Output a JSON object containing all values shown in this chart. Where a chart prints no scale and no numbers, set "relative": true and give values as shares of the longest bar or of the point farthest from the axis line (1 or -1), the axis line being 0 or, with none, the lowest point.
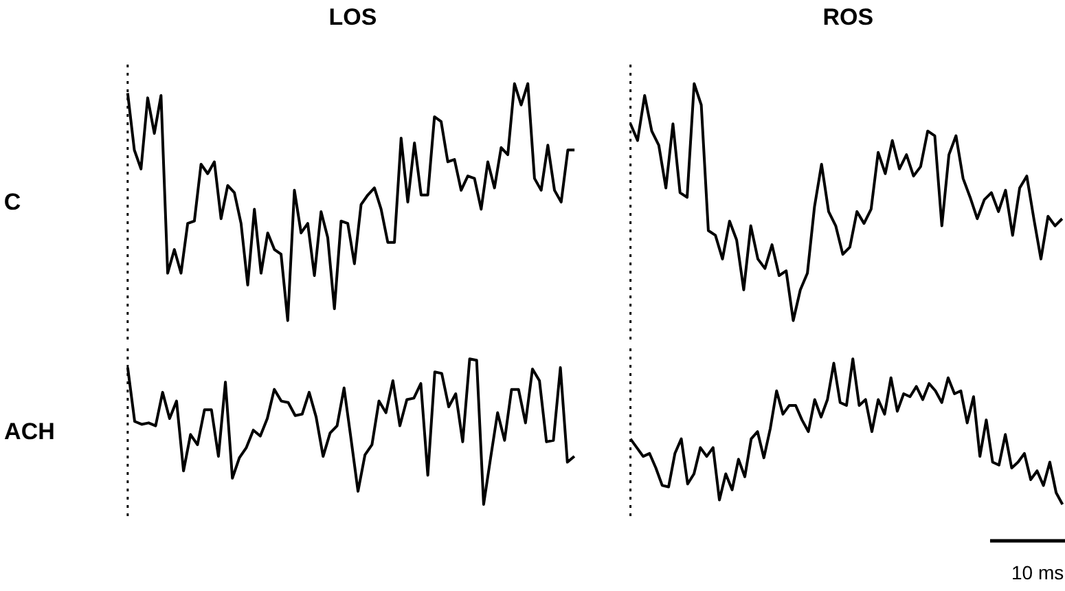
{
  "chart_data": [
    {
      "type": "line",
      "title": "LOS",
      "ylabel": "C",
      "relative": true,
      "tick_labels": false,
      "categories": [
        null,
        null,
        null,
        null,
        null,
        null,
        null,
        null,
        null,
        null,
        null,
        null,
        null,
        null,
        null,
        null,
        null,
        null,
        null,
        null,
        null,
        null,
        null,
        null,
        null,
        null,
        null,
        null,
        null,
        null,
        null,
        null,
        null,
        null,
        null,
        null,
        null,
        null,
        null,
        null,
        null,
        null,
        null,
        null,
        null,
        null,
        null,
        null,
        null,
        null,
        null,
        null,
        null,
        null,
        null,
        null,
        null,
        null,
        null,
        null,
        null,
        null,
        null,
        null,
        null,
        null,
        null,
        null
      ],
      "series": [
        {
          "color": "#000000",
          "values": [
            0.96,
            0.72,
            0.64,
            0.94,
            0.79,
            0.95,
            0.2,
            0.3,
            0.2,
            0.41,
            0.42,
            0.66,
            0.62,
            0.67,
            0.43,
            0.57,
            0.54,
            0.41,
            0.15,
            0.47,
            0.2,
            0.37,
            0.3,
            0.28,
            0,
            0.55,
            0.37,
            0.41,
            0.19,
            0.46,
            0.35,
            0.05,
            0.42,
            0.41,
            0.24,
            0.49,
            0.53,
            0.56,
            0.47,
            0.33,
            0.33,
            0.77,
            0.5,
            0.75,
            0.53,
            0.53,
            0.86,
            0.84,
            0.67,
            0.68,
            0.55,
            0.61,
            0.6,
            0.47,
            0.67,
            0.56,
            0.73,
            0.7,
            1,
            0.91,
            1,
            0.6,
            0.55,
            0.74,
            0.55,
            0.5,
            0.72,
            0.72
          ]
        }
      ]
    },
    {
      "type": "line",
      "title": "ROS",
      "relative": true,
      "tick_labels": false,
      "categories": [
        null,
        null,
        null,
        null,
        null,
        null,
        null,
        null,
        null,
        null,
        null,
        null,
        null,
        null,
        null,
        null,
        null,
        null,
        null,
        null,
        null,
        null,
        null,
        null,
        null,
        null,
        null,
        null,
        null,
        null,
        null,
        null,
        null,
        null,
        null,
        null,
        null,
        null,
        null,
        null,
        null,
        null,
        null,
        null,
        null,
        null,
        null,
        null,
        null,
        null,
        null,
        null,
        null,
        null,
        null,
        null,
        null,
        null,
        null,
        null,
        null,
        null
      ],
      "series": [
        {
          "color": "#000000",
          "values": [
            0.83,
            0.76,
            0.95,
            0.8,
            0.74,
            0.56,
            0.83,
            0.54,
            0.52,
            1,
            0.91,
            0.38,
            0.36,
            0.26,
            0.42,
            0.34,
            0.13,
            0.4,
            0.26,
            0.22,
            0.32,
            0.19,
            0.21,
            0,
            0.13,
            0.2,
            0.48,
            0.66,
            0.46,
            0.4,
            0.28,
            0.31,
            0.46,
            0.41,
            0.47,
            0.71,
            0.62,
            0.76,
            0.64,
            0.7,
            0.61,
            0.65,
            0.8,
            0.78,
            0.4,
            0.7,
            0.78,
            0.6,
            0.52,
            0.43,
            0.51,
            0.54,
            0.46,
            0.55,
            0.36,
            0.56,
            0.61,
            0.43,
            0.26,
            0.44,
            0.4,
            0.43
          ]
        }
      ]
    },
    {
      "type": "line",
      "ylabel": "ACH",
      "relative": true,
      "tick_labels": false,
      "categories": [
        null,
        null,
        null,
        null,
        null,
        null,
        null,
        null,
        null,
        null,
        null,
        null,
        null,
        null,
        null,
        null,
        null,
        null,
        null,
        null,
        null,
        null,
        null,
        null,
        null,
        null,
        null,
        null,
        null,
        null,
        null,
        null,
        null,
        null,
        null,
        null,
        null,
        null,
        null,
        null,
        null,
        null,
        null,
        null,
        null,
        null,
        null,
        null,
        null,
        null,
        null,
        null,
        null,
        null,
        null,
        null,
        null,
        null,
        null,
        null,
        null,
        null,
        null,
        null,
        null
      ],
      "series": [
        {
          "color": "#000000",
          "values": [
            0.94,
            0.57,
            0.55,
            0.56,
            0.54,
            0.77,
            0.59,
            0.71,
            0.23,
            0.48,
            0.41,
            0.65,
            0.65,
            0.33,
            0.84,
            0.18,
            0.32,
            0.39,
            0.51,
            0.47,
            0.59,
            0.79,
            0.71,
            0.7,
            0.61,
            0.62,
            0.77,
            0.6,
            0.33,
            0.49,
            0.54,
            0.8,
            0.45,
            0.09,
            0.34,
            0.41,
            0.71,
            0.63,
            0.85,
            0.54,
            0.72,
            0.73,
            0.83,
            0.2,
            0.91,
            0.9,
            0.67,
            0.76,
            0.43,
            1,
            0.99,
            0,
            0.32,
            0.63,
            0.44,
            0.79,
            0.79,
            0.56,
            0.93,
            0.85,
            0.43,
            0.44,
            0.94,
            0.29,
            0.33
          ]
        }
      ]
    },
    {
      "type": "line",
      "relative": true,
      "tick_labels": false,
      "annotations": [
        "10 ms"
      ],
      "categories": [
        null,
        null,
        null,
        null,
        null,
        null,
        null,
        null,
        null,
        null,
        null,
        null,
        null,
        null,
        null,
        null,
        null,
        null,
        null,
        null,
        null,
        null,
        null,
        null,
        null,
        null,
        null,
        null,
        null,
        null,
        null,
        null,
        null,
        null,
        null,
        null,
        null,
        null,
        null,
        null,
        null,
        null,
        null,
        null,
        null,
        null,
        null,
        null,
        null,
        null,
        null,
        null,
        null,
        null,
        null,
        null,
        null,
        null,
        null,
        null,
        null,
        null,
        null,
        null,
        null,
        null,
        null,
        null,
        null
      ],
      "series": [
        {
          "color": "#000000",
          "values": [
            0.45,
            0.39,
            0.33,
            0.35,
            0.25,
            0.13,
            0.12,
            0.35,
            0.45,
            0.14,
            0.21,
            0.39,
            0.33,
            0.39,
            0.03,
            0.21,
            0.1,
            0.31,
            0.19,
            0.45,
            0.5,
            0.32,
            0.52,
            0.78,
            0.62,
            0.68,
            0.68,
            0.58,
            0.5,
            0.72,
            0.6,
            0.72,
            0.97,
            0.7,
            0.68,
            1,
            0.68,
            0.72,
            0.5,
            0.72,
            0.62,
            0.87,
            0.64,
            0.76,
            0.74,
            0.81,
            0.72,
            0.83,
            0.78,
            0.7,
            0.87,
            0.76,
            0.78,
            0.56,
            0.74,
            0.33,
            0.58,
            0.29,
            0.27,
            0.48,
            0.25,
            0.29,
            0.35,
            0.17,
            0.23,
            0.13,
            0.29,
            0.08,
            0
          ]
        }
      ]
    }
  ]
}
